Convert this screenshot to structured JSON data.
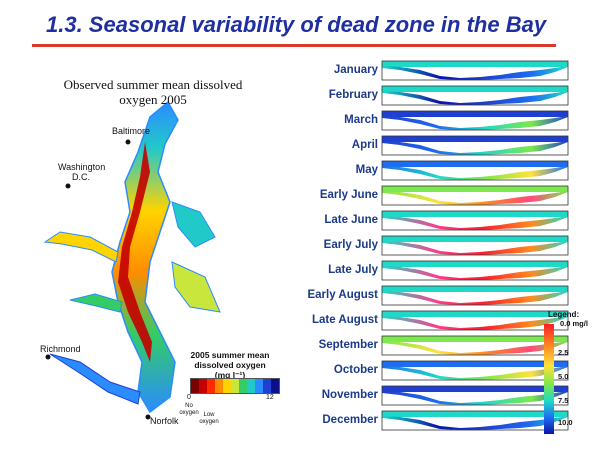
{
  "slide": {
    "title": "1.3. Seasonal variability of dead zone in the Bay"
  },
  "map": {
    "title_line1": "Observed summer  mean dissolved",
    "title_line2": "oxygen 2005",
    "cities": {
      "baltimore": "Baltimore",
      "washington_1": "Washington",
      "washington_2": "D.C.",
      "richmond": "Richmond",
      "norfolk": "Norfolk"
    },
    "legend": {
      "line1": "2005 summer mean",
      "line2": "dissolved oxygen",
      "line3": "(mg l⁻¹)",
      "min": "0",
      "max": "12",
      "no_oxygen_1": "No",
      "no_oxygen_2": "oxygen",
      "low_oxygen_1": "Low",
      "low_oxygen_2": "oxygen",
      "colors": [
        "#7a0000",
        "#c40000",
        "#ff2a00",
        "#ff8c00",
        "#ffd400",
        "#c8e63c",
        "#33cc66",
        "#22c9c9",
        "#2a8cff",
        "#1f3fd1",
        "#0b108a"
      ]
    }
  },
  "months": [
    {
      "label": "January",
      "profile": "cold"
    },
    {
      "label": "February",
      "profile": "cold"
    },
    {
      "label": "March",
      "profile": "cool"
    },
    {
      "label": "April",
      "profile": "cool"
    },
    {
      "label": "May",
      "profile": "mild"
    },
    {
      "label": "Early June",
      "profile": "warm"
    },
    {
      "label": "Late June",
      "profile": "hot"
    },
    {
      "label": "Early July",
      "profile": "hot"
    },
    {
      "label": "Late July",
      "profile": "hot"
    },
    {
      "label": "Early August",
      "profile": "hot"
    },
    {
      "label": "Late August",
      "profile": "hot"
    },
    {
      "label": "September",
      "profile": "warm"
    },
    {
      "label": "October",
      "profile": "mild"
    },
    {
      "label": "November",
      "profile": "cool"
    },
    {
      "label": "December",
      "profile": "cold"
    }
  ],
  "legend2": {
    "title": "Legend:",
    "unit": "0.0 mg/l",
    "ticks": [
      "2.5",
      "5.0",
      "7.5",
      "10.0"
    ]
  },
  "colors": {
    "title": "#1f2fa0",
    "rule": "#d63a2a",
    "month_label": "#1b3a8a"
  }
}
